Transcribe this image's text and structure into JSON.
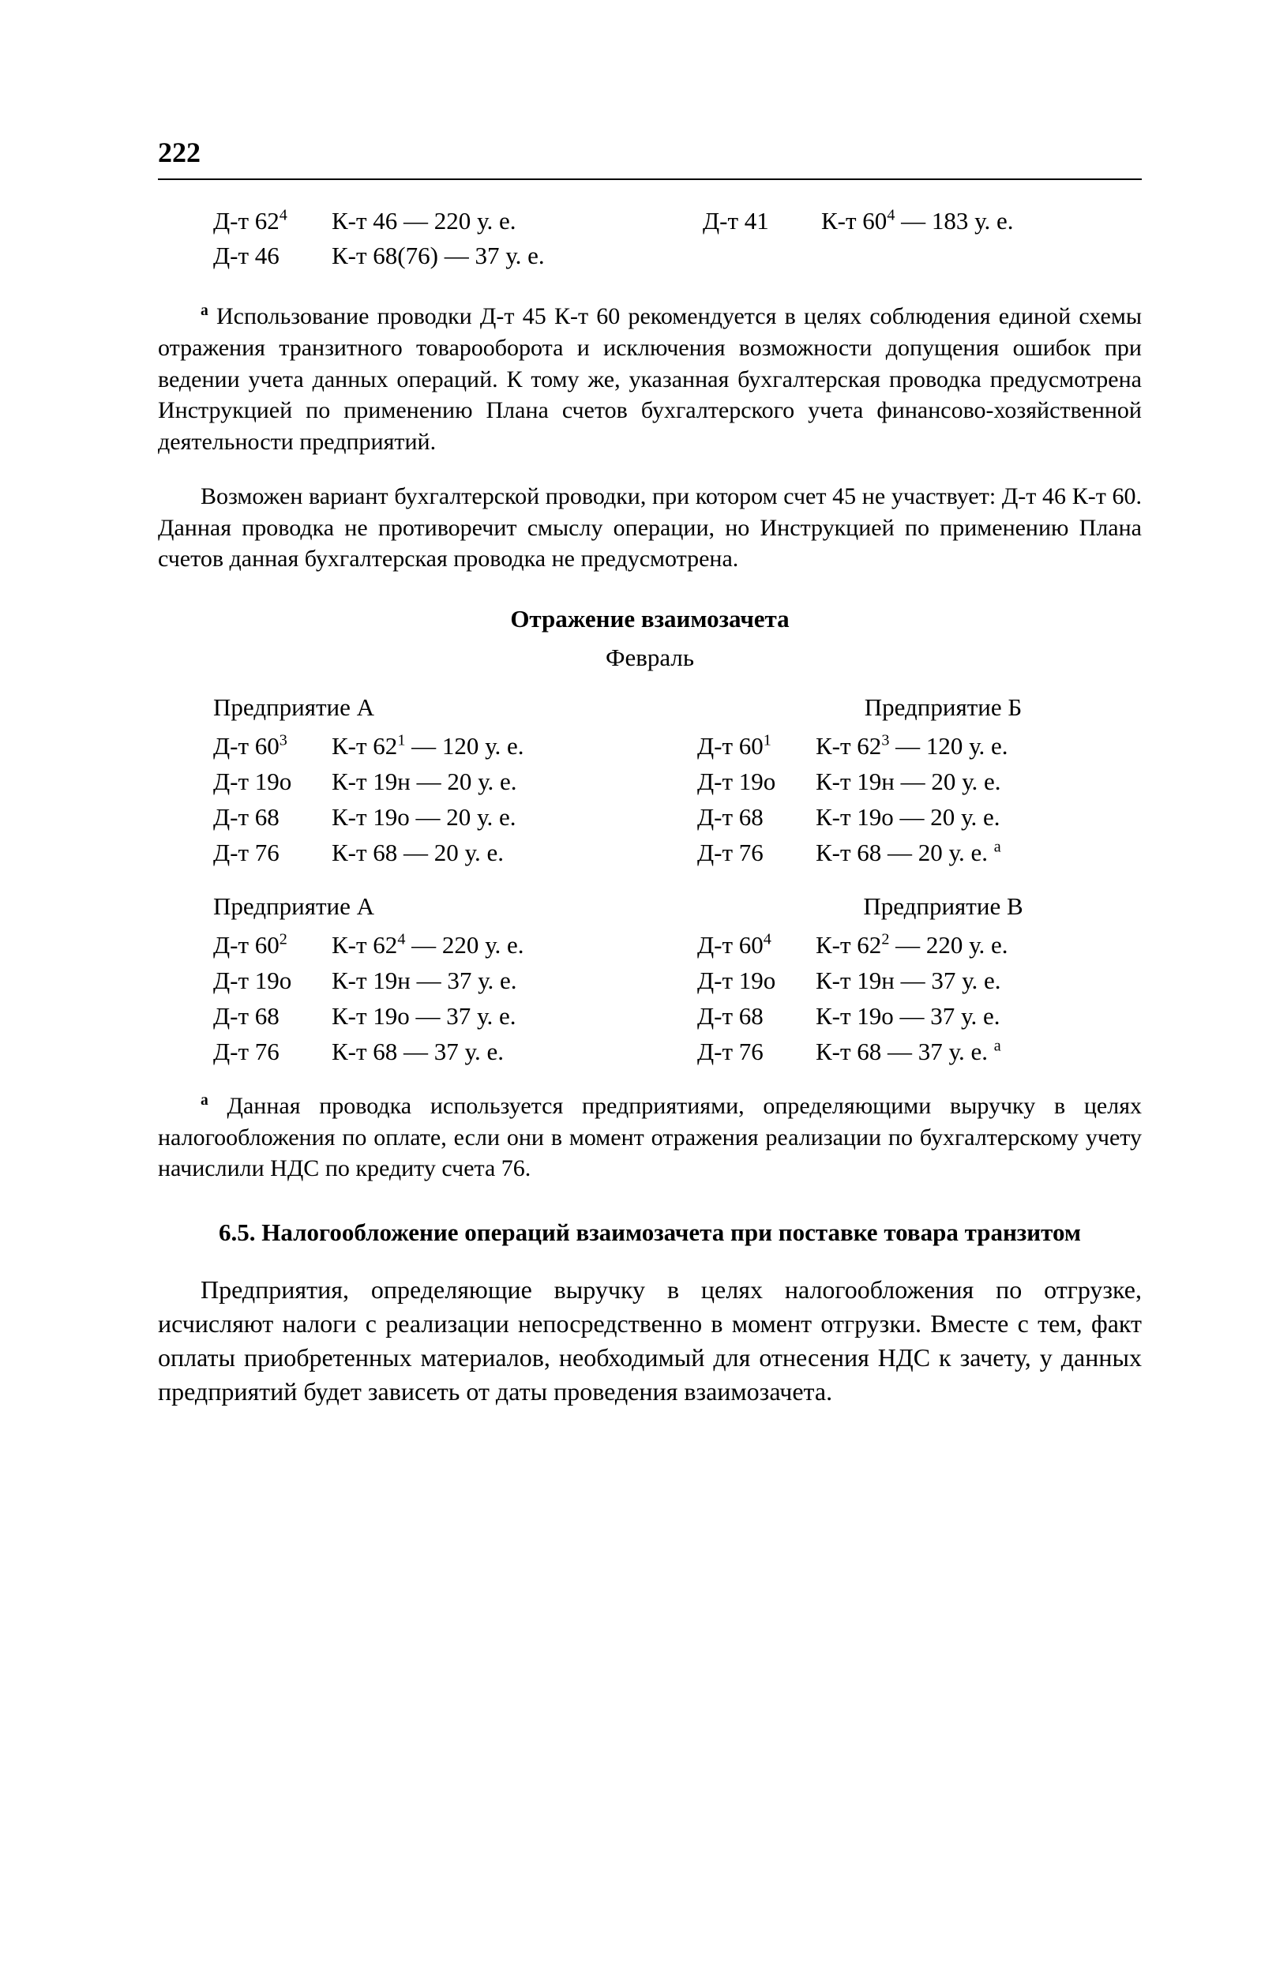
{
  "page_number": "222",
  "top_entries": {
    "left": [
      {
        "dt": "Д-т 62",
        "dt_sup": "4",
        "kt": "К-т 46 — 220 у. е."
      },
      {
        "dt": "Д-т 46",
        "dt_sup": "",
        "kt": "К-т 68(76) — 37 у. е."
      }
    ],
    "right": [
      {
        "dt": "Д-т 41",
        "dt_sup": "",
        "kt_pre": "К-т 60",
        "kt_sup": "4",
        "kt_post": " — 183 у. е."
      }
    ]
  },
  "footnote_a_marker": "а",
  "footnote_a": " Использование проводки Д-т 45 К-т 60 рекомендуется в целях соблюдения единой схемы отражения транзитного товарооборота и исключения возможности допущения ошибок при ведении учета данных операций. К тому же, указанная бухгалтерская проводка предусмотрена Инструкцией по применению Плана счетов бухгалтерского учета финансово-хозяйственной деятельности предприятий.",
  "para_b": "Возможен вариант бухгалтерской проводки, при котором счет 45 не участвует: Д-т 46 К-т 60. Данная проводка не противоречит смыслу операции, но Инструкцией по применению Плана счетов данная бухгалтерская проводка не предусмотрена.",
  "section_title": "Отражение взаимозачета",
  "month": "Февраль",
  "blocks": [
    {
      "left_heading": "Предприятие А",
      "right_heading": "Предприятие Б",
      "left": [
        {
          "dt": "Д-т 60",
          "dt_sup": "3",
          "kt_pre": "К-т 62",
          "kt_sup": "1",
          "kt_post": " — 120 у. е."
        },
        {
          "dt": "Д-т 19о",
          "dt_sup": "",
          "kt_pre": "К-т 19н — 20 у. е.",
          "kt_sup": "",
          "kt_post": ""
        },
        {
          "dt": "Д-т 68",
          "dt_sup": "",
          "kt_pre": "К-т 19о — 20 у. е.",
          "kt_sup": "",
          "kt_post": ""
        },
        {
          "dt": "Д-т 76",
          "dt_sup": "",
          "kt_pre": "К-т 68 — 20 у. е.",
          "kt_sup": "",
          "kt_post": ""
        }
      ],
      "right": [
        {
          "dt": "Д-т 60",
          "dt_sup": "1",
          "kt_pre": "К-т 62",
          "kt_sup": "3",
          "kt_post": " — 120 у. е."
        },
        {
          "dt": "Д-т 19о",
          "dt_sup": "",
          "kt_pre": "К-т 19н — 20 у. е.",
          "kt_sup": "",
          "kt_post": ""
        },
        {
          "dt": "Д-т 68",
          "dt_sup": "",
          "kt_pre": "К-т 19о — 20 у. е.",
          "kt_sup": "",
          "kt_post": ""
        },
        {
          "dt": "Д-т 76",
          "dt_sup": "",
          "kt_pre": "К-т 68 — 20 у. е. ",
          "kt_sup": "",
          "kt_post": "",
          "mark": "а"
        }
      ]
    },
    {
      "left_heading": "Предприятие А",
      "right_heading": "Предприятие В",
      "left": [
        {
          "dt": "Д-т 60",
          "dt_sup": "2",
          "kt_pre": "К-т 62",
          "kt_sup": "4",
          "kt_post": " — 220 у. е."
        },
        {
          "dt": "Д-т 19о",
          "dt_sup": "",
          "kt_pre": "К-т 19н — 37 у. е.",
          "kt_sup": "",
          "kt_post": ""
        },
        {
          "dt": "Д-т 68",
          "dt_sup": "",
          "kt_pre": "К-т 19о — 37 у. е.",
          "kt_sup": "",
          "kt_post": ""
        },
        {
          "dt": "Д-т 76",
          "dt_sup": "",
          "kt_pre": "К-т 68 — 37 у. е.",
          "kt_sup": "",
          "kt_post": ""
        }
      ],
      "right": [
        {
          "dt": "Д-т 60",
          "dt_sup": "4",
          "kt_pre": "К-т 62",
          "kt_sup": "2",
          "kt_post": " — 220 у. е."
        },
        {
          "dt": "Д-т 19о",
          "dt_sup": "",
          "kt_pre": "К-т 19н — 37 у. е.",
          "kt_sup": "",
          "kt_post": ""
        },
        {
          "dt": "Д-т 68",
          "dt_sup": "",
          "kt_pre": "К-т 19о — 37 у. е.",
          "kt_sup": "",
          "kt_post": ""
        },
        {
          "dt": "Д-т 76",
          "dt_sup": "",
          "kt_pre": "К-т 68 — 37 у. е. ",
          "kt_sup": "",
          "kt_post": "",
          "mark": "а"
        }
      ]
    }
  ],
  "footnote_c_marker": "а",
  "footnote_c": " Данная проводка используется предприятиями, определяющими выручку в целях налогообложения по оплате, если они в момент отражения реализации по бухгалтерскому учету начислили НДС по кредиту счета 76.",
  "chapter_title": "6.5. Налогообложение операций взаимозачета при поставке товара транзитом",
  "body_para": "Предприятия, определяющие выручку в целях налогообложения по отгрузке, исчисляют налоги с реализации непосредственно в момент отгрузки. Вместе с тем, факт оплаты приобретенных материалов, необходимый для отнесения НДС к зачету, у данных предприятий будет зависеть от даты проведения взаимозачета."
}
